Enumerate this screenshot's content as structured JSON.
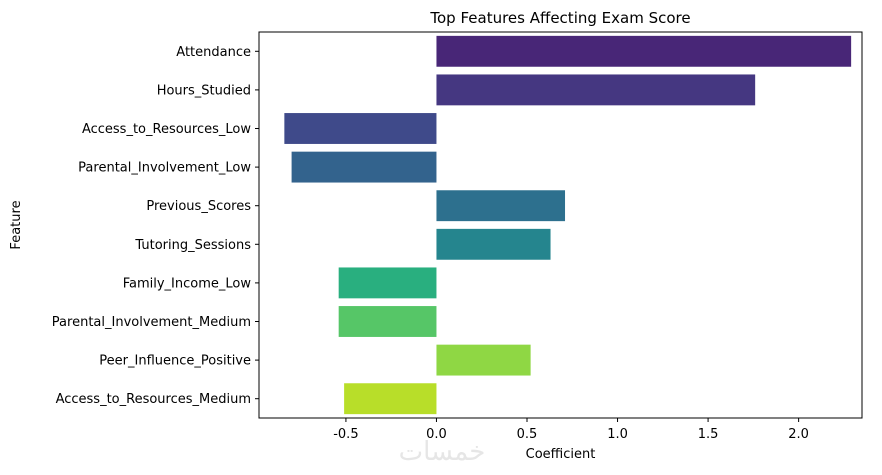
{
  "chart_data": {
    "type": "bar",
    "orientation": "horizontal",
    "title": "Top Features Affecting Exam Score",
    "xlabel": "Coefficient",
    "ylabel": "Feature",
    "categories": [
      "Attendance",
      "Hours_Studied",
      "Access_to_Resources_Low",
      "Parental_Involvement_Low",
      "Previous_Scores",
      "Tutoring_Sessions",
      "Family_Income_Low",
      "Parental_Involvement_Medium",
      "Peer_Influence_Positive",
      "Access_to_Resources_Medium"
    ],
    "values": [
      2.29,
      1.76,
      -0.84,
      -0.8,
      0.71,
      0.63,
      -0.54,
      -0.54,
      0.52,
      -0.51
    ],
    "colors": [
      "#482677",
      "#453781",
      "#3f4a8a",
      "#33638d",
      "#2d708e",
      "#25858e",
      "#29af7f",
      "#56c667",
      "#8fd744",
      "#b8de29"
    ],
    "xlim": [
      -0.98,
      2.35
    ],
    "xticks": [
      "-0.5",
      "0.0",
      "0.5",
      "1.0",
      "1.5",
      "2.0"
    ],
    "xtick_values": [
      -0.5,
      0.0,
      0.5,
      1.0,
      1.5,
      2.0
    ],
    "grid": false,
    "legend": false
  },
  "watermark": {
    "text": "خمسات",
    "color": "#e6e6e6"
  }
}
